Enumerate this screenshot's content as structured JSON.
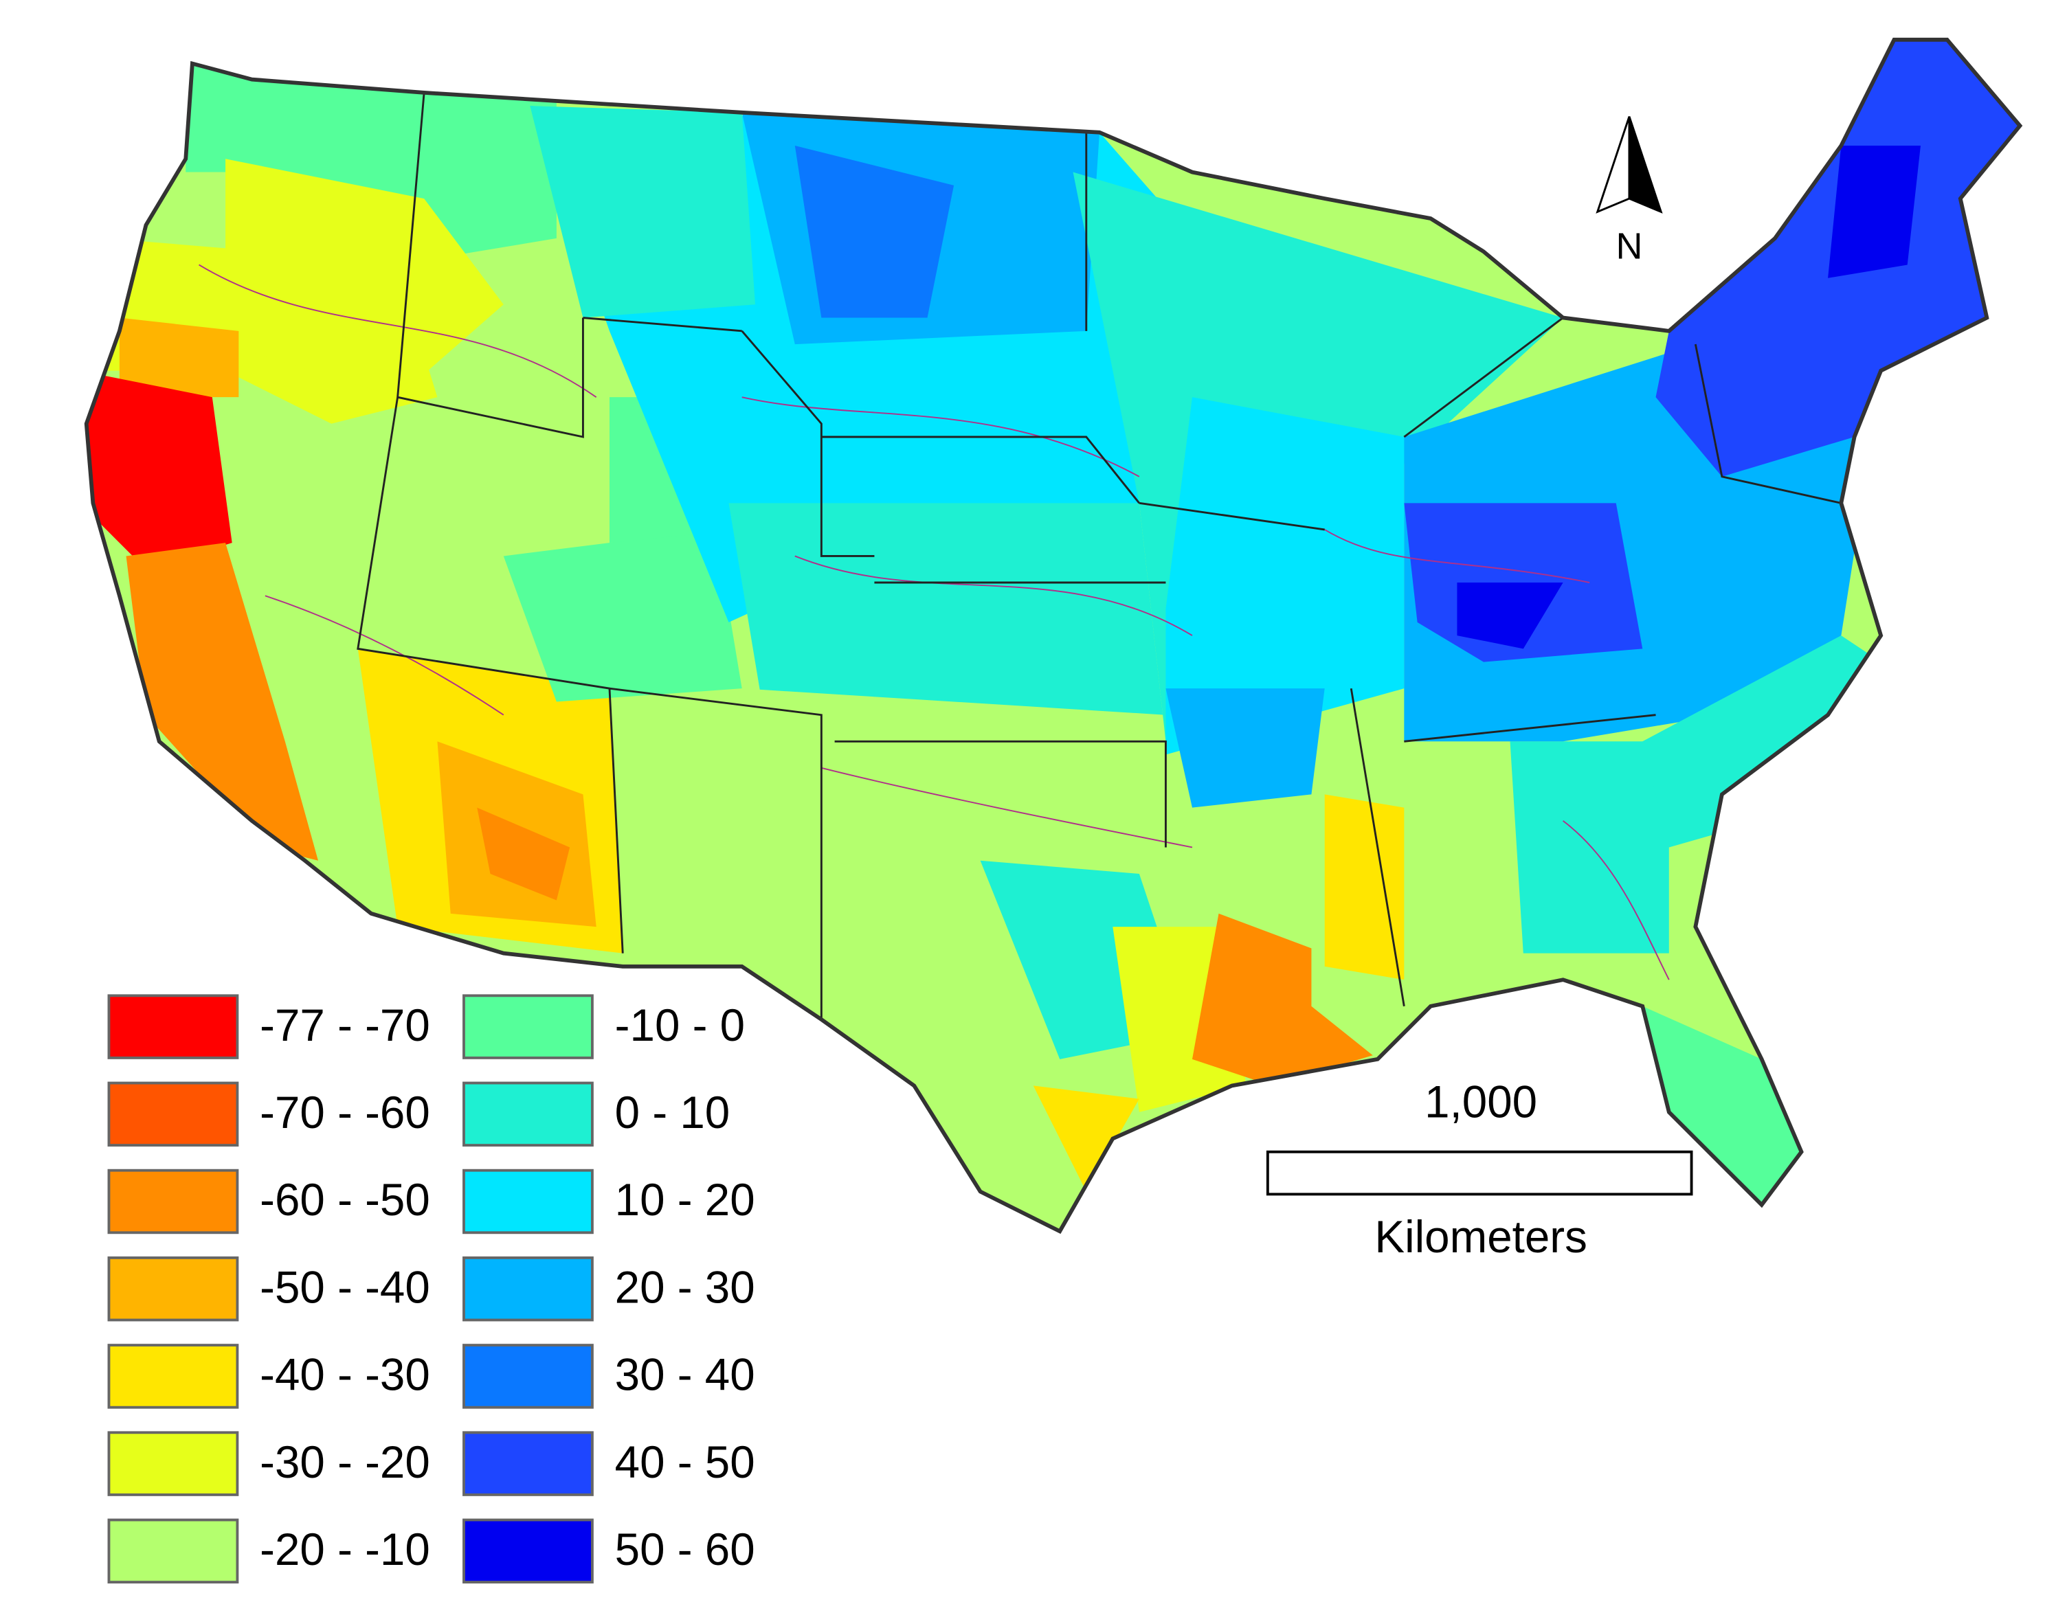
{
  "legend": {
    "items": [
      {
        "label": "-77 - -70",
        "color": "#ff0000"
      },
      {
        "label": "-70 - -60",
        "color": "#ff5500"
      },
      {
        "label": "-60 - -50",
        "color": "#ff8c00"
      },
      {
        "label": "-50 - -40",
        "color": "#ffb400"
      },
      {
        "label": "-40 - -30",
        "color": "#ffe600"
      },
      {
        "label": "-30 - -20",
        "color": "#e6ff1a"
      },
      {
        "label": "-20 - -10",
        "color": "#b4ff6e"
      },
      {
        "label": "-10 - 0",
        "color": "#55ff9a"
      },
      {
        "label": "0 - 10",
        "color": "#1ef0d2"
      },
      {
        "label": "10 - 20",
        "color": "#00e6ff"
      },
      {
        "label": "20 - 30",
        "color": "#00b4ff"
      },
      {
        "label": "30 - 40",
        "color": "#0a78ff"
      },
      {
        "label": "40 - 50",
        "color": "#1e46ff"
      },
      {
        "label": "50 - 60",
        "color": "#0000f0"
      }
    ]
  },
  "scale_bar": {
    "label": "1,000",
    "unit": "Kilometers"
  },
  "north_arrow": {
    "label": "N"
  }
}
